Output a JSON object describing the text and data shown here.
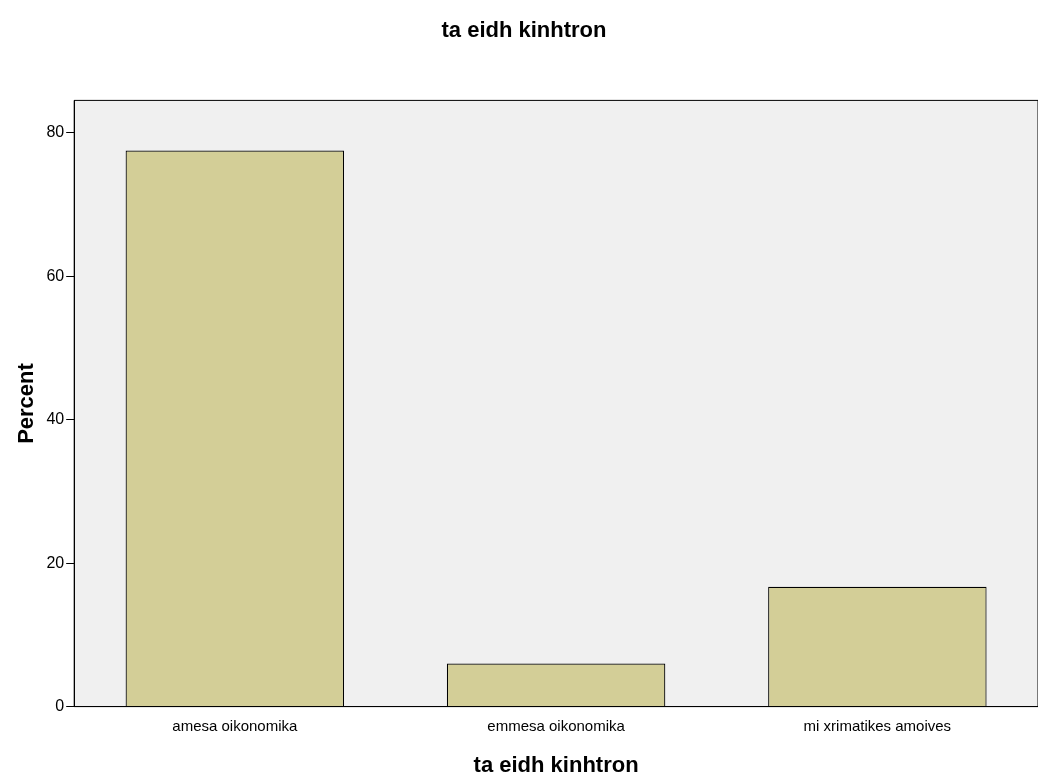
{
  "chart_data": {
    "type": "bar",
    "title": "ta eidh kinhtron",
    "xlabel": "ta eidh kinhtron",
    "ylabel": "Percent",
    "categories": [
      "amesa oikonomika",
      "emmesa oikonomika",
      "mi xrimatikes amoives"
    ],
    "values": [
      77.5,
      6.0,
      16.7
    ],
    "color": "#d3ce97",
    "ylim": [
      0,
      84.5
    ],
    "yticks": [
      0,
      20,
      40,
      60,
      80
    ],
    "grid": false,
    "legend": false
  }
}
